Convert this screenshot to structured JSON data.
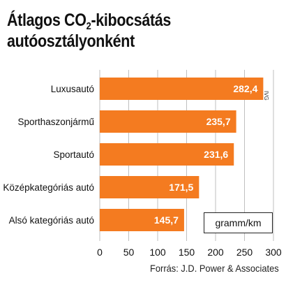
{
  "title_part1": "Átlagos CO",
  "title_sub": "2",
  "title_part2": "-kibocsátás",
  "title_line2": "autóosztályonként",
  "source": "Forrás: J.D. Power & Associates",
  "credit": "IVG",
  "colors": {
    "bar": "#f47b20",
    "grid": "#bfbfbf",
    "text": "#111111"
  },
  "chart_data": {
    "type": "bar",
    "orientation": "horizontal",
    "categories": [
      "Luxusautó",
      "Sporthaszonjármű",
      "Sportautó",
      "Középkategóriás autó",
      "Alsó kategóriás autó"
    ],
    "values": [
      282.4,
      235.7,
      231.6,
      171.5,
      145.7
    ],
    "value_labels": [
      "282,4",
      "235,7",
      "231,6",
      "171,5",
      "145,7"
    ],
    "unit": "gramm/km",
    "xlim": [
      0,
      300
    ],
    "x_ticks": [
      0,
      50,
      100,
      150,
      200,
      250,
      300
    ],
    "grid": true
  }
}
